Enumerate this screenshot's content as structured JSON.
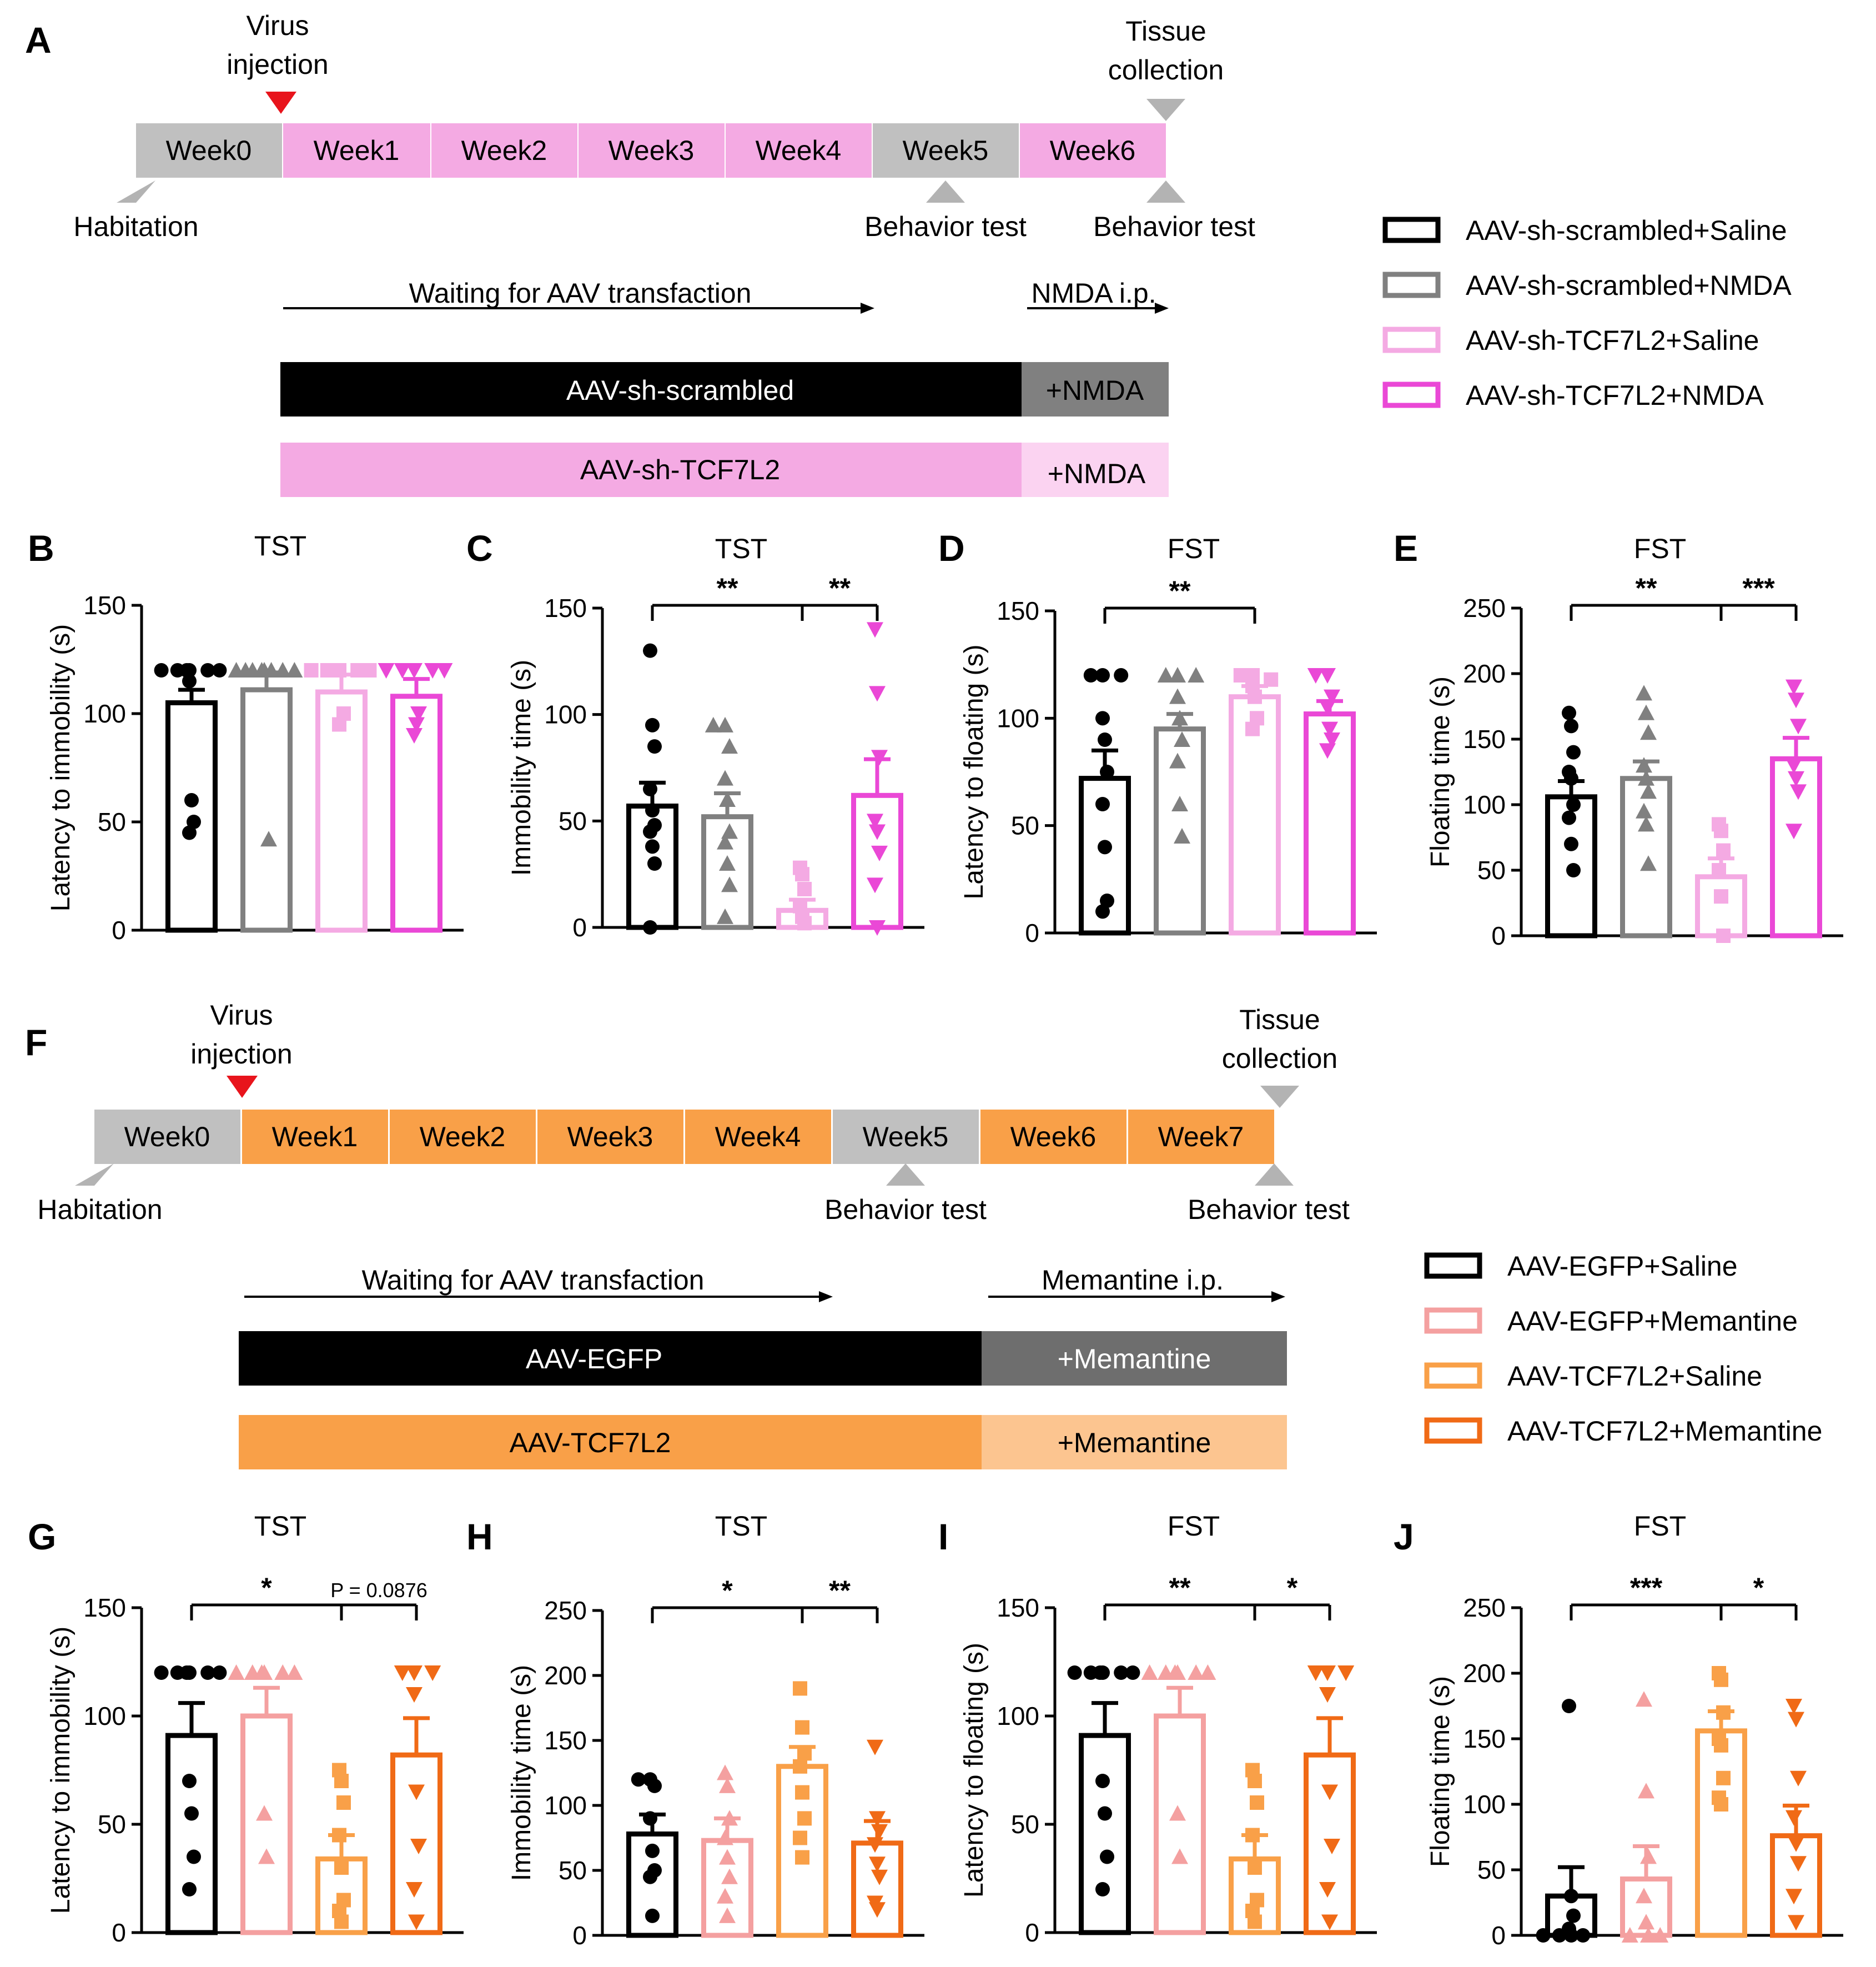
{
  "panelA": {
    "letter": "A",
    "weeks": [
      "Week0",
      "Week1",
      "Week2",
      "Week3",
      "Week4",
      "Week5",
      "Week6"
    ],
    "week_colors": [
      "#c0c0c0",
      "#f4aae3",
      "#f4aae3",
      "#f4aae3",
      "#f4aae3",
      "#c0c0c0",
      "#f4aae3"
    ],
    "virus_label_1": "Virus",
    "virus_label_2": "injection",
    "tissue_label_1": "Tissue",
    "tissue_label_2": "collection",
    "habitation": "Habitation",
    "behavior_test_1": "Behavior test",
    "behavior_test_2": "Behavior test",
    "waiting": "Waiting for AAV transfaction",
    "treatment": "NMDA i.p.",
    "bar1_label": "AAV-sh-scrambled",
    "bar1_tail": "+NMDA",
    "bar2_label": "AAV-sh-TCF7L2",
    "bar2_tail": "+NMDA",
    "legend": [
      {
        "label": "AAV-sh-scrambled+Saline",
        "color": "#000000"
      },
      {
        "label": "AAV-sh-scrambled+NMDA",
        "color": "#808080"
      },
      {
        "label": "AAV-sh-TCF7L2+Saline",
        "color": "#f4aae3"
      },
      {
        "label": "AAV-sh-TCF7L2+NMDA",
        "color": "#ea48d6"
      }
    ]
  },
  "panelF": {
    "letter": "F",
    "weeks": [
      "Week0",
      "Week1",
      "Week2",
      "Week3",
      "Week4",
      "Week5",
      "Week6",
      "Week7"
    ],
    "week_colors": [
      "#c0c0c0",
      "#f9a048",
      "#f9a048",
      "#f9a048",
      "#f9a048",
      "#c0c0c0",
      "#f9a048",
      "#f9a048"
    ],
    "virus_label_1": "Virus",
    "virus_label_2": "injection",
    "tissue_label_1": "Tissue",
    "tissue_label_2": "collection",
    "habitation": "Habitation",
    "behavior_test_1": "Behavior test",
    "behavior_test_2": "Behavior test",
    "waiting": "Waiting for AAV transfaction",
    "treatment": "Memantine i.p.",
    "bar1_label": "AAV-EGFP",
    "bar1_tail": "+Memantine",
    "bar2_label": "AAV-TCF7L2",
    "bar2_tail": "+Memantine",
    "legend": [
      {
        "label": "AAV-EGFP+Saline",
        "color": "#000000"
      },
      {
        "label": "AAV-EGFP+Memantine",
        "color": "#f4a0a0"
      },
      {
        "label": "AAV-TCF7L2+Saline",
        "color": "#f9a048"
      },
      {
        "label": "AAV-TCF7L2+Memantine",
        "color": "#f06a16"
      }
    ]
  },
  "chart_data": [
    {
      "id": "B",
      "type": "bar",
      "title": "TST",
      "ylabel": "Latency to immobility (s)",
      "ylim": [
        0,
        150
      ],
      "yticks": [
        0,
        50,
        100,
        150
      ],
      "colors": [
        "#000000",
        "#808080",
        "#f4aae3",
        "#ea48d6"
      ],
      "markers": [
        "circle",
        "triangle",
        "square",
        "tri-down"
      ],
      "values": [
        105,
        111,
        110,
        108
      ],
      "errors": [
        6,
        8,
        8,
        8
      ],
      "points": [
        [
          120,
          120,
          120,
          120,
          120,
          120,
          115,
          60,
          50,
          45
        ],
        [
          120,
          120,
          120,
          120,
          120,
          120,
          120,
          120,
          42
        ],
        [
          120,
          120,
          120,
          120,
          120,
          100,
          95
        ],
        [
          120,
          120,
          120,
          120,
          120,
          100,
          90,
          95
        ]
      ],
      "sig": []
    },
    {
      "id": "C",
      "type": "bar",
      "title": "TST",
      "ylabel": "Immobility time (s)",
      "ylim": [
        0,
        150
      ],
      "yticks": [
        0,
        50,
        100,
        150
      ],
      "colors": [
        "#000000",
        "#808080",
        "#f4aae3",
        "#ea48d6"
      ],
      "markers": [
        "circle",
        "triangle",
        "square",
        "tri-down"
      ],
      "values": [
        57,
        52,
        8,
        62
      ],
      "errors": [
        11,
        11,
        5,
        17
      ],
      "points": [
        [
          130,
          95,
          85,
          65,
          55,
          48,
          45,
          38,
          30,
          0
        ],
        [
          95,
          95,
          85,
          70,
          60,
          45,
          40,
          30,
          20,
          5
        ],
        [
          28,
          25,
          18,
          10,
          5,
          2
        ],
        [
          140,
          110,
          80,
          50,
          45,
          35,
          20,
          0
        ]
      ],
      "sig": [
        {
          "from": 0,
          "to": 2,
          "text": "**"
        },
        {
          "from": 2,
          "to": 3,
          "text": "**"
        }
      ]
    },
    {
      "id": "D",
      "type": "bar",
      "title": "FST",
      "ylabel": "Latency to floating (s)",
      "ylim": [
        0,
        150
      ],
      "yticks": [
        0,
        50,
        100,
        150
      ],
      "colors": [
        "#000000",
        "#808080",
        "#f4aae3",
        "#ea48d6"
      ],
      "markers": [
        "circle",
        "triangle",
        "square",
        "tri-down"
      ],
      "values": [
        72,
        95,
        110,
        102
      ],
      "errors": [
        13,
        7,
        5,
        6
      ],
      "points": [
        [
          120,
          120,
          120,
          100,
          90,
          75,
          60,
          40,
          15,
          10
        ],
        [
          120,
          120,
          120,
          110,
          100,
          90,
          80,
          60,
          45
        ],
        [
          120,
          120,
          118,
          115,
          110,
          100,
          95
        ],
        [
          120,
          120,
          110,
          105,
          95,
          90,
          85
        ]
      ],
      "sig": [
        {
          "from": 0,
          "to": 2,
          "text": "**"
        }
      ]
    },
    {
      "id": "E",
      "type": "bar",
      "title": "FST",
      "ylabel": "Floating time (s)",
      "ylim": [
        0,
        250
      ],
      "yticks": [
        0,
        50,
        100,
        150,
        200,
        250
      ],
      "colors": [
        "#000000",
        "#808080",
        "#f4aae3",
        "#ea48d6"
      ],
      "markers": [
        "circle",
        "triangle",
        "square",
        "tri-down"
      ],
      "values": [
        106,
        120,
        45,
        135
      ],
      "errors": [
        12,
        13,
        14,
        16
      ],
      "points": [
        [
          170,
          160,
          140,
          125,
          120,
          100,
          90,
          70,
          50
        ],
        [
          185,
          170,
          155,
          130,
          120,
          110,
          95,
          85,
          55
        ],
        [
          85,
          80,
          65,
          50,
          30,
          0
        ],
        [
          190,
          180,
          160,
          130,
          120,
          110,
          80
        ]
      ],
      "sig": [
        {
          "from": 0,
          "to": 2,
          "text": "**"
        },
        {
          "from": 2,
          "to": 3,
          "text": "***"
        }
      ]
    },
    {
      "id": "G",
      "type": "bar",
      "title": "TST",
      "ylabel": "Latency to immobility (s)",
      "ylim": [
        0,
        150
      ],
      "yticks": [
        0,
        50,
        100,
        150
      ],
      "colors": [
        "#000000",
        "#f4a0a0",
        "#f9a048",
        "#f06a16"
      ],
      "markers": [
        "circle",
        "triangle",
        "square",
        "tri-down"
      ],
      "values": [
        91,
        100,
        34,
        82
      ],
      "errors": [
        15,
        13,
        11,
        17
      ],
      "points": [
        [
          120,
          120,
          120,
          120,
          120,
          120,
          70,
          55,
          35,
          20
        ],
        [
          120,
          120,
          120,
          120,
          120,
          120,
          55,
          35
        ],
        [
          75,
          70,
          60,
          45,
          30,
          15,
          10,
          5
        ],
        [
          120,
          120,
          120,
          110,
          65,
          40,
          20,
          5
        ]
      ],
      "sig": [
        {
          "from": 0,
          "to": 2,
          "text": "*"
        },
        {
          "from": 2,
          "to": 3,
          "text": "P = 0.0876",
          "small": true
        }
      ]
    },
    {
      "id": "H",
      "type": "bar",
      "title": "TST",
      "ylabel": "Immobility time (s)",
      "ylim": [
        0,
        250
      ],
      "yticks": [
        0,
        50,
        100,
        150,
        200,
        250
      ],
      "colors": [
        "#000000",
        "#f4a0a0",
        "#f9a048",
        "#f06a16"
      ],
      "markers": [
        "circle",
        "triangle",
        "square",
        "tri-down"
      ],
      "values": [
        78,
        73,
        130,
        71
      ],
      "errors": [
        15,
        17,
        15,
        17
      ],
      "points": [
        [
          120,
          120,
          115,
          90,
          65,
          50,
          45,
          15
        ],
        [
          125,
          115,
          90,
          75,
          60,
          45,
          30,
          15
        ],
        [
          190,
          160,
          140,
          130,
          110,
          90,
          75,
          60
        ],
        [
          145,
          90,
          80,
          70,
          55,
          45,
          25,
          20
        ]
      ],
      "sig": [
        {
          "from": 0,
          "to": 2,
          "text": "*"
        },
        {
          "from": 2,
          "to": 3,
          "text": "**"
        }
      ]
    },
    {
      "id": "I",
      "type": "bar",
      "title": "FST",
      "ylabel": "Latency to floating (s)",
      "ylim": [
        0,
        150
      ],
      "yticks": [
        0,
        50,
        100,
        150
      ],
      "colors": [
        "#000000",
        "#f4a0a0",
        "#f9a048",
        "#f06a16"
      ],
      "markers": [
        "circle",
        "triangle",
        "square",
        "tri-down"
      ],
      "values": [
        91,
        100,
        34,
        82
      ],
      "errors": [
        15,
        13,
        11,
        17
      ],
      "points": [
        [
          120,
          120,
          120,
          120,
          120,
          120,
          70,
          55,
          35,
          20
        ],
        [
          120,
          120,
          120,
          120,
          120,
          120,
          55,
          35
        ],
        [
          75,
          70,
          60,
          45,
          30,
          15,
          10,
          5
        ],
        [
          120,
          120,
          120,
          110,
          65,
          40,
          20,
          5
        ]
      ],
      "sig": [
        {
          "from": 0,
          "to": 2,
          "text": "**"
        },
        {
          "from": 2,
          "to": 3,
          "text": "*"
        }
      ]
    },
    {
      "id": "J",
      "type": "bar",
      "title": "FST",
      "ylabel": "Floating time (s)",
      "ylim": [
        0,
        250
      ],
      "yticks": [
        0,
        50,
        100,
        150,
        200,
        250
      ],
      "colors": [
        "#000000",
        "#f4a0a0",
        "#f9a048",
        "#f06a16"
      ],
      "markers": [
        "circle",
        "triangle",
        "square",
        "tri-down"
      ],
      "values": [
        30,
        43,
        156,
        76
      ],
      "errors": [
        22,
        25,
        15,
        23
      ],
      "points": [
        [
          175,
          30,
          15,
          5,
          0,
          0,
          0,
          0
        ],
        [
          180,
          110,
          60,
          30,
          10,
          0,
          0,
          0
        ],
        [
          200,
          195,
          170,
          150,
          145,
          120,
          105,
          100
        ],
        [
          175,
          165,
          120,
          90,
          70,
          55,
          30,
          10
        ]
      ],
      "sig": [
        {
          "from": 0,
          "to": 2,
          "text": "***"
        },
        {
          "from": 2,
          "to": 3,
          "text": "*"
        }
      ]
    }
  ]
}
